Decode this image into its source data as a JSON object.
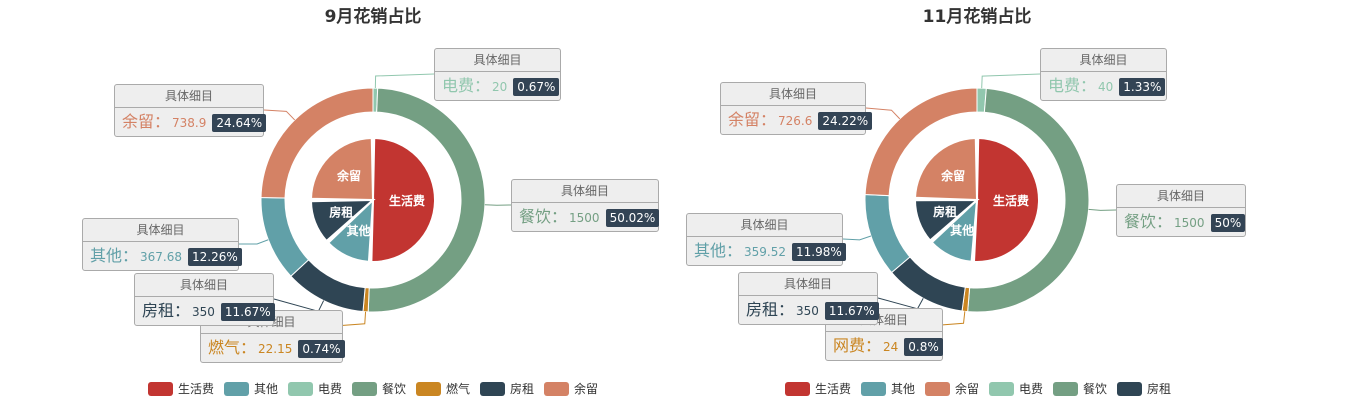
{
  "chart_data": [
    {
      "type": "pie",
      "title": "9月花销占比",
      "inner": [
        {
          "name": "生活费",
          "value": 1500,
          "color": "#c23531"
        },
        {
          "name": "其他",
          "value": 367.68,
          "color": "#61a0a8"
        },
        {
          "name": "房租",
          "value": 350,
          "color": "#2f4554"
        },
        {
          "name": "余留",
          "value": 738.9,
          "color": "#d48265"
        }
      ],
      "outer": [
        {
          "name": "电费",
          "value": 20,
          "percent": "0.67%",
          "color": "#91c7ae"
        },
        {
          "name": "餐饮",
          "value": 1500,
          "percent": "50.02%",
          "color": "#749f83"
        },
        {
          "name": "燃气",
          "value": 22.15,
          "percent": "0.74%",
          "color": "#ca8622"
        },
        {
          "name": "房租",
          "value": 350,
          "percent": "11.67%",
          "color": "#2f4554"
        },
        {
          "name": "其他",
          "value": 367.68,
          "percent": "12.26%",
          "color": "#61a0a8"
        },
        {
          "name": "余留",
          "value": 738.9,
          "percent": "24.64%",
          "color": "#d48265"
        }
      ],
      "callout_header": "具体细目",
      "legend": [
        {
          "name": "生活费",
          "color": "#c23531"
        },
        {
          "name": "其他",
          "color": "#61a0a8"
        },
        {
          "name": "电费",
          "color": "#91c7ae"
        },
        {
          "name": "餐饮",
          "color": "#749f83"
        },
        {
          "name": "燃气",
          "color": "#ca8622"
        },
        {
          "name": "房租",
          "color": "#2f4554"
        },
        {
          "name": "余留",
          "color": "#d48265"
        }
      ],
      "legend_position": "bottom"
    },
    {
      "type": "pie",
      "title": "11月花销占比",
      "inner": [
        {
          "name": "生活费",
          "value": 1500,
          "color": "#c23531"
        },
        {
          "name": "其他",
          "value": 359.52,
          "color": "#61a0a8"
        },
        {
          "name": "房租",
          "value": 350,
          "color": "#2f4554"
        },
        {
          "name": "余留",
          "value": 726.6,
          "color": "#d48265"
        }
      ],
      "outer": [
        {
          "name": "电费",
          "value": 40,
          "percent": "1.33%",
          "color": "#91c7ae"
        },
        {
          "name": "餐饮",
          "value": 1500,
          "percent": "50%",
          "color": "#749f83"
        },
        {
          "name": "网费",
          "value": 24,
          "percent": "0.8%",
          "color": "#ca8622"
        },
        {
          "name": "房租",
          "value": 350,
          "percent": "11.67%",
          "color": "#2f4554"
        },
        {
          "name": "其他",
          "value": 359.52,
          "percent": "11.98%",
          "color": "#61a0a8"
        },
        {
          "name": "余留",
          "value": 726.6,
          "percent": "24.22%",
          "color": "#d48265"
        }
      ],
      "callout_header": "具体细目",
      "legend": [
        {
          "name": "生活费",
          "color": "#c23531"
        },
        {
          "name": "其他",
          "color": "#61a0a8"
        },
        {
          "name": "余留",
          "color": "#d48265"
        },
        {
          "name": "电费",
          "color": "#91c7ae"
        },
        {
          "name": "餐饮",
          "color": "#749f83"
        },
        {
          "name": "房租",
          "color": "#2f4554"
        }
      ],
      "legend_position": "bottom"
    }
  ]
}
